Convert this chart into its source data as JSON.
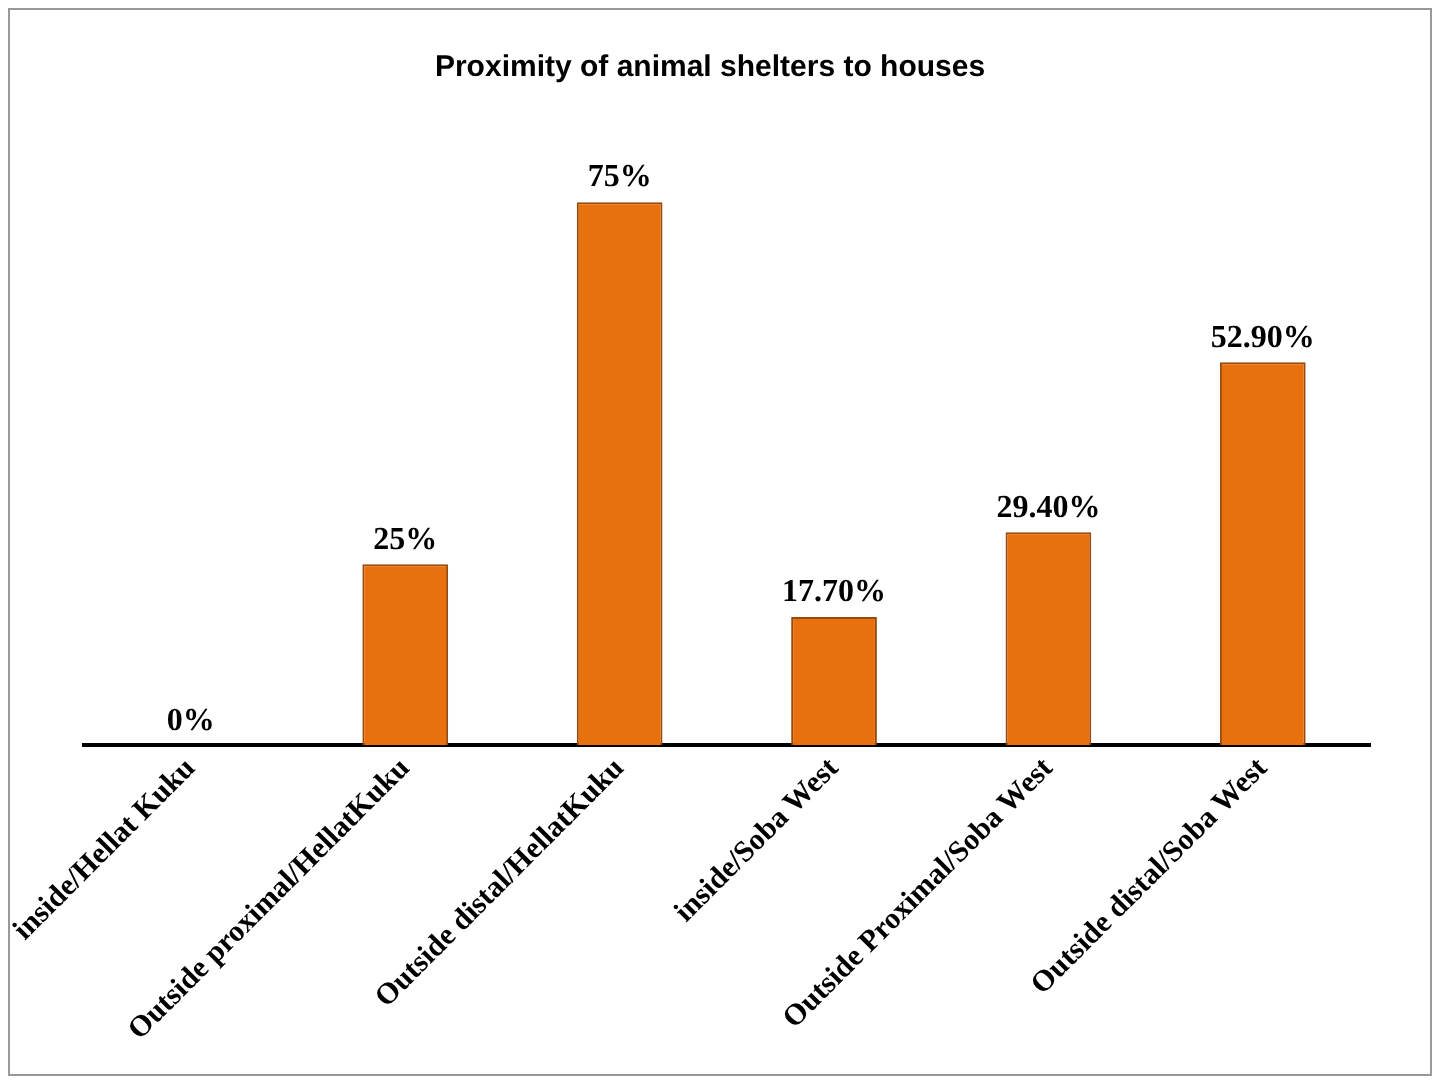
{
  "chart_data": {
    "type": "bar",
    "title": "Proximity of animal shelters to houses",
    "categories": [
      "inside/Hellat Kuku",
      "Outside proximal/HellatKuku",
      "Outside distal/HellatKuku",
      "inside/Soba West",
      "Outside Proximal/Soba West",
      "Outside distal/Soba West"
    ],
    "values": [
      0,
      25,
      75,
      17.7,
      29.4,
      52.9
    ],
    "value_labels": [
      "0%",
      "25%",
      "75%",
      "17.70%",
      "29.40%",
      "52.90%"
    ],
    "color": "#e8700e",
    "grid": false,
    "legend": false,
    "tick_labels": "x"
  }
}
